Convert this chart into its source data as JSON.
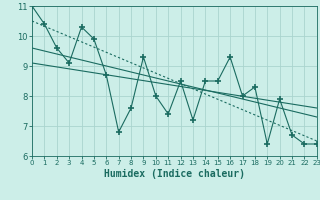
{
  "xlabel": "Humidex (Indice chaleur)",
  "background_color": "#cceee8",
  "grid_color": "#aad4ce",
  "line_color": "#1a6b60",
  "xlim": [
    0,
    23
  ],
  "ylim": [
    6,
    11
  ],
  "yticks": [
    6,
    7,
    8,
    9,
    10,
    11
  ],
  "xticks": [
    0,
    1,
    2,
    3,
    4,
    5,
    6,
    7,
    8,
    9,
    10,
    11,
    12,
    13,
    14,
    15,
    16,
    17,
    18,
    19,
    20,
    21,
    22,
    23
  ],
  "series1_x": [
    0,
    1,
    2,
    3,
    4,
    5,
    6,
    7,
    8,
    9,
    10,
    11,
    12,
    13,
    14,
    15,
    16,
    17,
    18,
    19,
    20,
    21,
    22,
    23
  ],
  "series1_y": [
    11.0,
    10.4,
    9.6,
    9.1,
    10.3,
    9.9,
    8.7,
    6.8,
    7.6,
    9.3,
    8.0,
    7.4,
    8.5,
    7.2,
    8.5,
    8.5,
    9.3,
    8.0,
    8.3,
    6.4,
    7.9,
    6.7,
    6.4,
    6.4
  ],
  "trend1_x": [
    0,
    23
  ],
  "trend1_y": [
    10.5,
    6.5
  ],
  "trend2_x": [
    0,
    23
  ],
  "trend2_y": [
    9.6,
    7.3
  ],
  "trend3_x": [
    0,
    23
  ],
  "trend3_y": [
    9.1,
    7.6
  ],
  "marker_size": 4,
  "line_width": 0.8
}
